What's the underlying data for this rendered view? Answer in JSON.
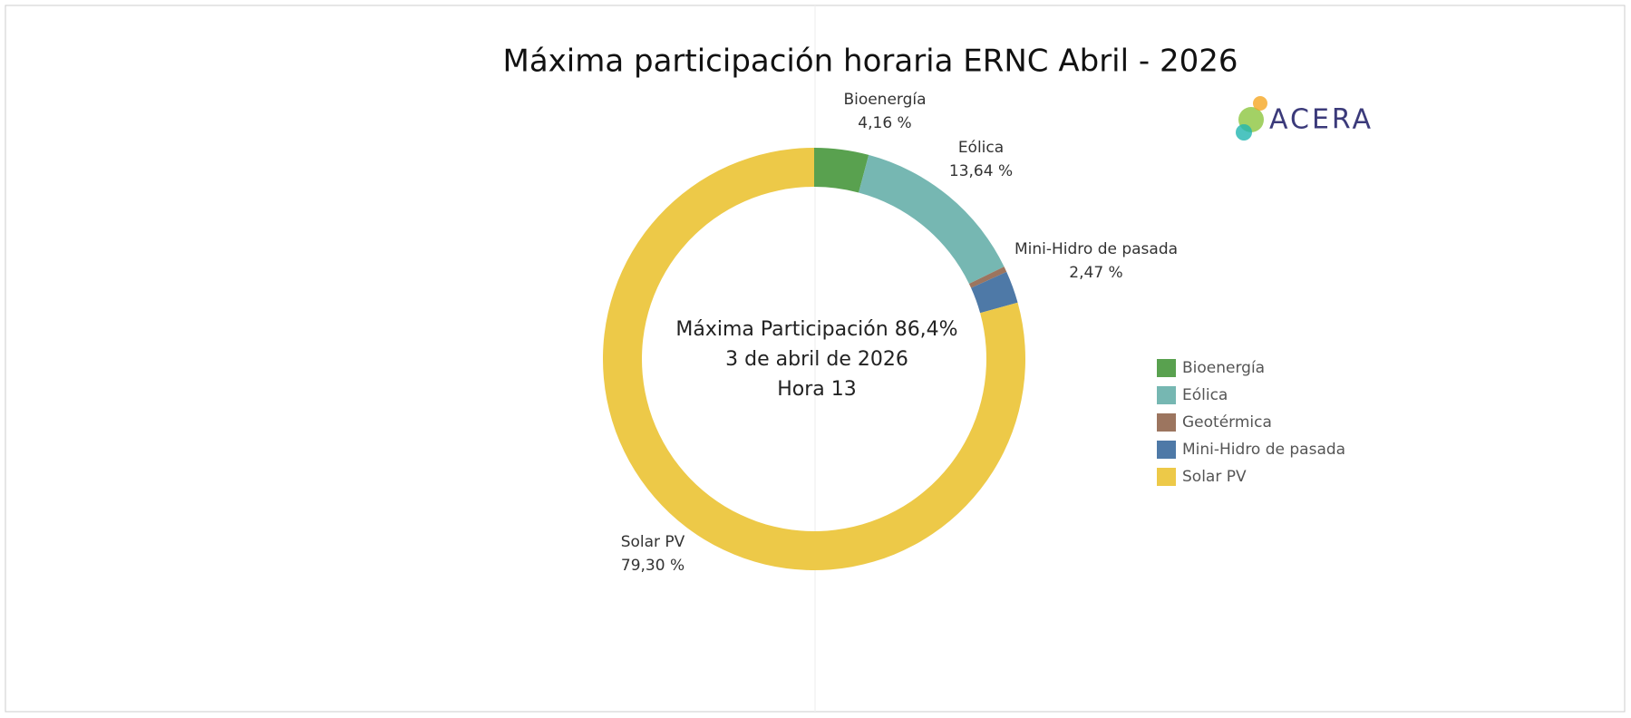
{
  "chart_data": {
    "type": "donut",
    "title": "Máxima participación horaria ERNC Abril - 2026",
    "categories": [
      "Bioenergía",
      "Eólica",
      "Geotérmica",
      "Mini-Hidro de pasada",
      "Solar PV"
    ],
    "values": [
      4.16,
      13.64,
      0.43,
      2.47,
      79.3
    ],
    "value_labels": [
      "4,16 %",
      "13,64 %",
      null,
      "2,47 %",
      "79,30 %"
    ],
    "colors": [
      "#59a14f",
      "#76b7b2",
      "#9c755f",
      "#4e79a7",
      "#edc948"
    ],
    "center_text": [
      "Máxima Participación  86,4%",
      "3 de abril de 2026",
      "Hora 13"
    ],
    "logo": "ACERA",
    "legend": "right"
  }
}
